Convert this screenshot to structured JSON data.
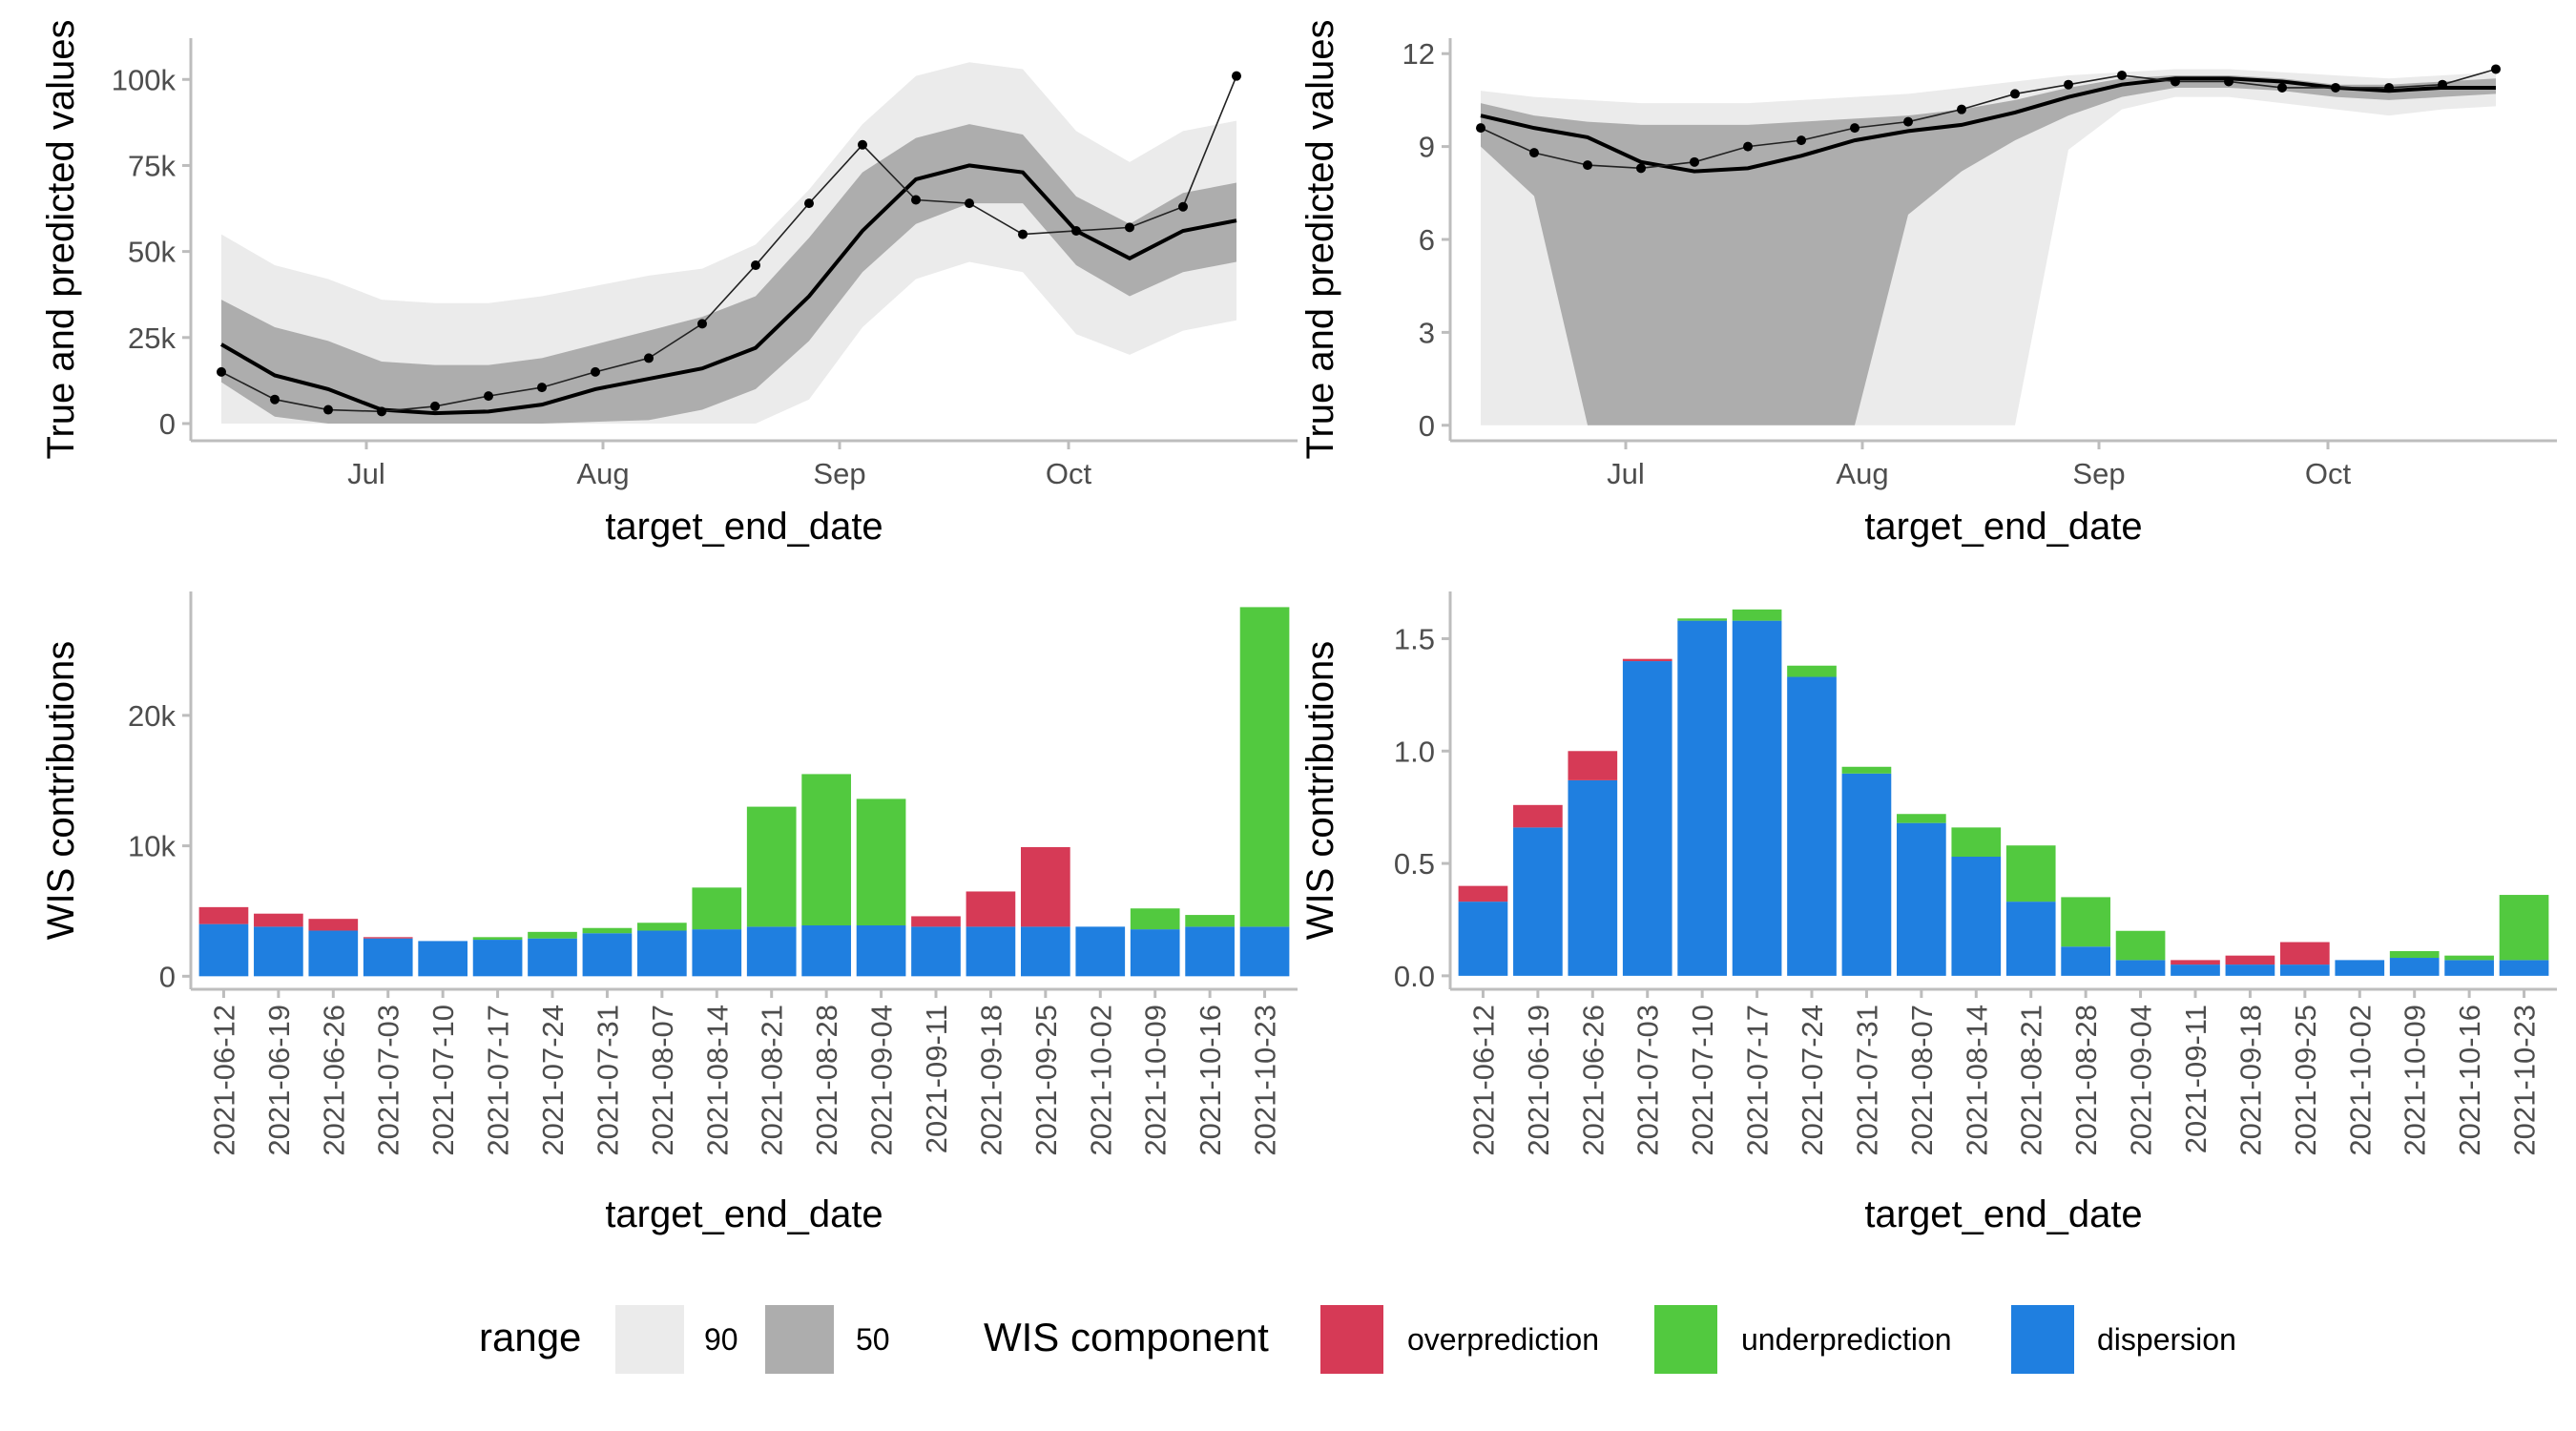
{
  "legend": {
    "range_title": "range",
    "range_items": [
      {
        "label": "90",
        "color": "#ebebeb"
      },
      {
        "label": "50",
        "color": "#adadad"
      }
    ],
    "wis_title": "WIS component",
    "wis_items": [
      {
        "label": "overprediction",
        "color": "#d63a56"
      },
      {
        "label": "underprediction",
        "color": "#52c93f"
      },
      {
        "label": "dispersion",
        "color": "#1f7fe0"
      }
    ]
  },
  "chart_data": [
    {
      "type": "area",
      "xlabel": "target_end_date",
      "ylabel": "True and predicted values",
      "xlim": [
        "2021-06-08",
        "2021-10-31"
      ],
      "ylim": [
        -5000,
        112000
      ],
      "yticks": [
        0,
        25000,
        50000,
        75000,
        100000
      ],
      "ytick_labels": [
        "0",
        "25k",
        "50k",
        "75k",
        "100k"
      ],
      "xticks": [
        "2021-07-01",
        "2021-08-01",
        "2021-09-01",
        "2021-10-01"
      ],
      "xtick_labels": [
        "Jul",
        "Aug",
        "Sep",
        "Oct"
      ],
      "dates": [
        "2021-06-12",
        "2021-06-19",
        "2021-06-26",
        "2021-07-03",
        "2021-07-10",
        "2021-07-17",
        "2021-07-24",
        "2021-07-31",
        "2021-08-07",
        "2021-08-14",
        "2021-08-21",
        "2021-08-28",
        "2021-09-04",
        "2021-09-11",
        "2021-09-18",
        "2021-09-25",
        "2021-10-02",
        "2021-10-09",
        "2021-10-16",
        "2021-10-23"
      ],
      "band90": {
        "lower": [
          0,
          0,
          0,
          0,
          0,
          0,
          0,
          0,
          0,
          0,
          0,
          7000,
          28000,
          42000,
          47000,
          44000,
          26000,
          20000,
          27000,
          30000
        ],
        "upper": [
          55000,
          46000,
          42000,
          36000,
          35000,
          35000,
          37000,
          40000,
          43000,
          45000,
          52000,
          68000,
          87000,
          101000,
          105000,
          103000,
          85000,
          76000,
          85000,
          88000
        ]
      },
      "band50": {
        "lower": [
          12000,
          2000,
          0,
          0,
          0,
          0,
          0,
          500,
          1000,
          4000,
          10000,
          24000,
          44000,
          58000,
          64000,
          64000,
          46000,
          37000,
          44000,
          47000
        ],
        "upper": [
          36000,
          28000,
          24000,
          18000,
          17000,
          17000,
          19000,
          23000,
          27000,
          31000,
          37000,
          54000,
          73000,
          83000,
          87000,
          84000,
          66000,
          58000,
          67000,
          70000
        ]
      },
      "median": [
        23000,
        14000,
        10000,
        4000,
        3000,
        3500,
        5500,
        10000,
        13000,
        16000,
        22000,
        37000,
        56000,
        71000,
        75000,
        73000,
        56000,
        48000,
        56000,
        59000
      ],
      "observed": [
        15000,
        7000,
        4000,
        3500,
        5000,
        8000,
        10500,
        15000,
        19000,
        29000,
        46000,
        64000,
        81000,
        65000,
        64000,
        55000,
        56000,
        57000,
        63000,
        101000
      ]
    },
    {
      "type": "area",
      "xlabel": "target_end_date",
      "ylabel": "True and predicted values",
      "xlim": [
        "2021-06-08",
        "2021-10-31"
      ],
      "ylim": [
        -0.5,
        12.5
      ],
      "yticks": [
        0,
        3,
        6,
        9,
        12
      ],
      "ytick_labels": [
        "0",
        "3",
        "6",
        "9",
        "12"
      ],
      "xticks": [
        "2021-07-01",
        "2021-08-01",
        "2021-09-01",
        "2021-10-01"
      ],
      "xtick_labels": [
        "Jul",
        "Aug",
        "Sep",
        "Oct"
      ],
      "dates": [
        "2021-06-12",
        "2021-06-19",
        "2021-06-26",
        "2021-07-03",
        "2021-07-10",
        "2021-07-17",
        "2021-07-24",
        "2021-07-31",
        "2021-08-07",
        "2021-08-14",
        "2021-08-21",
        "2021-08-28",
        "2021-09-04",
        "2021-09-11",
        "2021-09-18",
        "2021-09-25",
        "2021-10-02",
        "2021-10-09",
        "2021-10-16",
        "2021-10-23"
      ],
      "band90": {
        "lower": [
          0,
          0,
          0,
          0,
          0,
          0,
          0,
          0,
          0,
          0,
          0,
          8.9,
          10.2,
          10.6,
          10.6,
          10.4,
          10.2,
          10.0,
          10.2,
          10.3
        ],
        "upper": [
          10.8,
          10.6,
          10.5,
          10.4,
          10.4,
          10.4,
          10.5,
          10.6,
          10.7,
          10.9,
          11.1,
          11.3,
          11.4,
          11.5,
          11.5,
          11.4,
          11.3,
          11.2,
          11.3,
          11.4
        ]
      },
      "band50": {
        "lower": [
          9.0,
          7.4,
          0,
          0,
          0,
          0,
          0,
          0,
          6.8,
          8.2,
          9.2,
          10.0,
          10.6,
          10.9,
          10.9,
          10.8,
          10.6,
          10.5,
          10.6,
          10.7
        ],
        "upper": [
          10.4,
          10.0,
          9.8,
          9.7,
          9.7,
          9.7,
          9.8,
          9.9,
          10.0,
          10.2,
          10.5,
          10.9,
          11.2,
          11.3,
          11.3,
          11.2,
          11.0,
          11.0,
          11.1,
          11.2
        ]
      },
      "median": [
        10.0,
        9.6,
        9.3,
        8.5,
        8.2,
        8.3,
        8.7,
        9.2,
        9.5,
        9.7,
        10.1,
        10.6,
        11.0,
        11.2,
        11.2,
        11.1,
        10.9,
        10.8,
        10.9,
        10.9
      ],
      "observed": [
        9.6,
        8.8,
        8.4,
        8.3,
        8.5,
        9.0,
        9.2,
        9.6,
        9.8,
        10.2,
        10.7,
        11.0,
        11.3,
        11.1,
        11.1,
        10.9,
        10.9,
        10.9,
        11.0,
        11.5
      ]
    },
    {
      "type": "bar",
      "stacked": true,
      "xlabel": "target_end_date",
      "ylabel": "WIS contributions",
      "ylim": [
        -1000,
        29500
      ],
      "yticks": [
        0,
        10000,
        20000
      ],
      "ytick_labels": [
        "0",
        "10k",
        "20k"
      ],
      "categories": [
        "2021-06-12",
        "2021-06-19",
        "2021-06-26",
        "2021-07-03",
        "2021-07-10",
        "2021-07-17",
        "2021-07-24",
        "2021-07-31",
        "2021-08-07",
        "2021-08-14",
        "2021-08-21",
        "2021-08-28",
        "2021-09-04",
        "2021-09-11",
        "2021-09-18",
        "2021-09-25",
        "2021-10-02",
        "2021-10-09",
        "2021-10-16",
        "2021-10-23"
      ],
      "series": [
        {
          "name": "dispersion",
          "values": [
            4000,
            3800,
            3500,
            2900,
            2700,
            2800,
            2900,
            3300,
            3500,
            3600,
            3800,
            3900,
            3900,
            3800,
            3800,
            3800,
            3800,
            3600,
            3800,
            3800
          ]
        },
        {
          "name": "underprediction",
          "values": [
            0,
            0,
            0,
            0,
            0,
            200,
            500,
            400,
            600,
            3200,
            9200,
            11600,
            9700,
            0,
            0,
            0,
            0,
            1600,
            900,
            24500
          ]
        },
        {
          "name": "overprediction",
          "values": [
            1300,
            1000,
            900,
            100,
            0,
            0,
            0,
            0,
            0,
            0,
            0,
            0,
            0,
            800,
            2700,
            6100,
            0,
            0,
            0,
            0
          ]
        }
      ]
    },
    {
      "type": "bar",
      "stacked": true,
      "xlabel": "target_end_date",
      "ylabel": "WIS contributions",
      "ylim": [
        -0.06,
        1.71
      ],
      "yticks": [
        0,
        0.5,
        1.0,
        1.5
      ],
      "ytick_labels": [
        "0.0",
        "0.5",
        "1.0",
        "1.5"
      ],
      "categories": [
        "2021-06-12",
        "2021-06-19",
        "2021-06-26",
        "2021-07-03",
        "2021-07-10",
        "2021-07-17",
        "2021-07-24",
        "2021-07-31",
        "2021-08-07",
        "2021-08-14",
        "2021-08-21",
        "2021-08-28",
        "2021-09-04",
        "2021-09-11",
        "2021-09-18",
        "2021-09-25",
        "2021-10-02",
        "2021-10-09",
        "2021-10-16",
        "2021-10-23"
      ],
      "series": [
        {
          "name": "dispersion",
          "values": [
            0.33,
            0.66,
            0.87,
            1.4,
            1.58,
            1.58,
            1.33,
            0.9,
            0.68,
            0.53,
            0.33,
            0.13,
            0.07,
            0.05,
            0.05,
            0.05,
            0.07,
            0.08,
            0.07,
            0.07
          ]
        },
        {
          "name": "underprediction",
          "values": [
            0,
            0,
            0,
            0,
            0.01,
            0.05,
            0.05,
            0.03,
            0.04,
            0.13,
            0.25,
            0.22,
            0.13,
            0,
            0,
            0,
            0,
            0.03,
            0.02,
            0.29
          ]
        },
        {
          "name": "overprediction",
          "values": [
            0.07,
            0.1,
            0.13,
            0.01,
            0,
            0,
            0,
            0,
            0,
            0,
            0,
            0,
            0,
            0.02,
            0.04,
            0.1,
            0,
            0,
            0,
            0
          ]
        }
      ]
    }
  ]
}
